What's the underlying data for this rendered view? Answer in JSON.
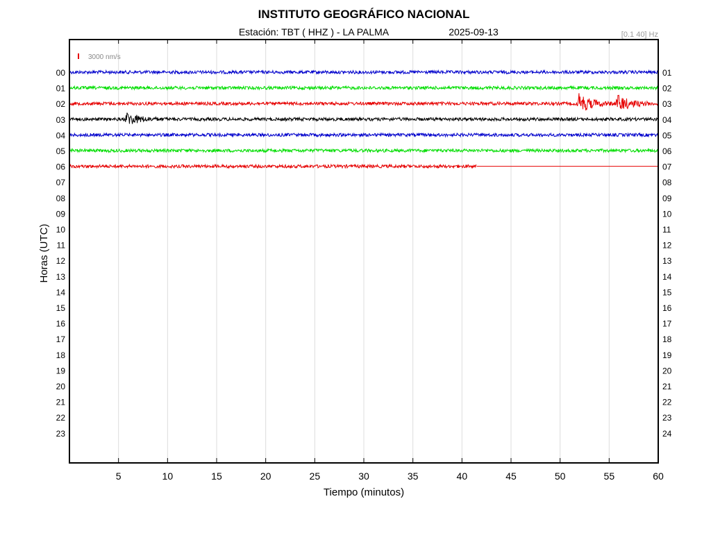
{
  "header": {
    "title": "INSTITUTO GEOGRÁFICO NACIONAL",
    "station": "Estación:  TBT ( HHZ ) - LA PALMA",
    "date": "2025-09-13",
    "filter": "[0.1 40] Hz",
    "scale_label": "3000 nm/s"
  },
  "colors": {
    "scale_bar": "#e60000",
    "frame": "#000000",
    "grid": "#dcdcdc"
  },
  "chart_data": {
    "type": "line",
    "title": "INSTITUTO GEOGRÁFICO NACIONAL",
    "xlabel": "Tiempo (minutos)",
    "ylabel": "Horas (UTC)",
    "xlim": [
      0,
      60
    ],
    "x_ticks": [
      "5",
      "10",
      "15",
      "20",
      "25",
      "30",
      "35",
      "40",
      "45",
      "50",
      "55",
      "60"
    ],
    "grid": "vertical",
    "left_ticks": [
      "00",
      "01",
      "02",
      "03",
      "04",
      "05",
      "06",
      "07",
      "08",
      "09",
      "10",
      "11",
      "12",
      "13",
      "14",
      "15",
      "16",
      "17",
      "18",
      "19",
      "20",
      "21",
      "22",
      "23"
    ],
    "right_ticks": [
      "01",
      "02",
      "03",
      "04",
      "05",
      "06",
      "07",
      "08",
      "09",
      "10",
      "11",
      "12",
      "13",
      "14",
      "15",
      "16",
      "17",
      "18",
      "19",
      "20",
      "21",
      "22",
      "23",
      "24"
    ],
    "series": [
      {
        "hour": "00",
        "color": "#0000cc",
        "end_minute": 60,
        "events": []
      },
      {
        "hour": "01",
        "color": "#00dd00",
        "end_minute": 60,
        "events": []
      },
      {
        "hour": "02",
        "color": "#e60000",
        "end_minute": 60,
        "events": [
          {
            "minute": 52,
            "amp": 1.6
          },
          {
            "minute": 56,
            "amp": 1.3
          }
        ]
      },
      {
        "hour": "03",
        "color": "#000000",
        "end_minute": 60,
        "events": [
          {
            "minute": 6,
            "amp": 1.0
          }
        ]
      },
      {
        "hour": "04",
        "color": "#0000cc",
        "end_minute": 60,
        "events": []
      },
      {
        "hour": "05",
        "color": "#00dd00",
        "end_minute": 60,
        "events": []
      },
      {
        "hour": "06",
        "color": "#e60000",
        "end_minute": 41.5,
        "events": []
      }
    ]
  }
}
